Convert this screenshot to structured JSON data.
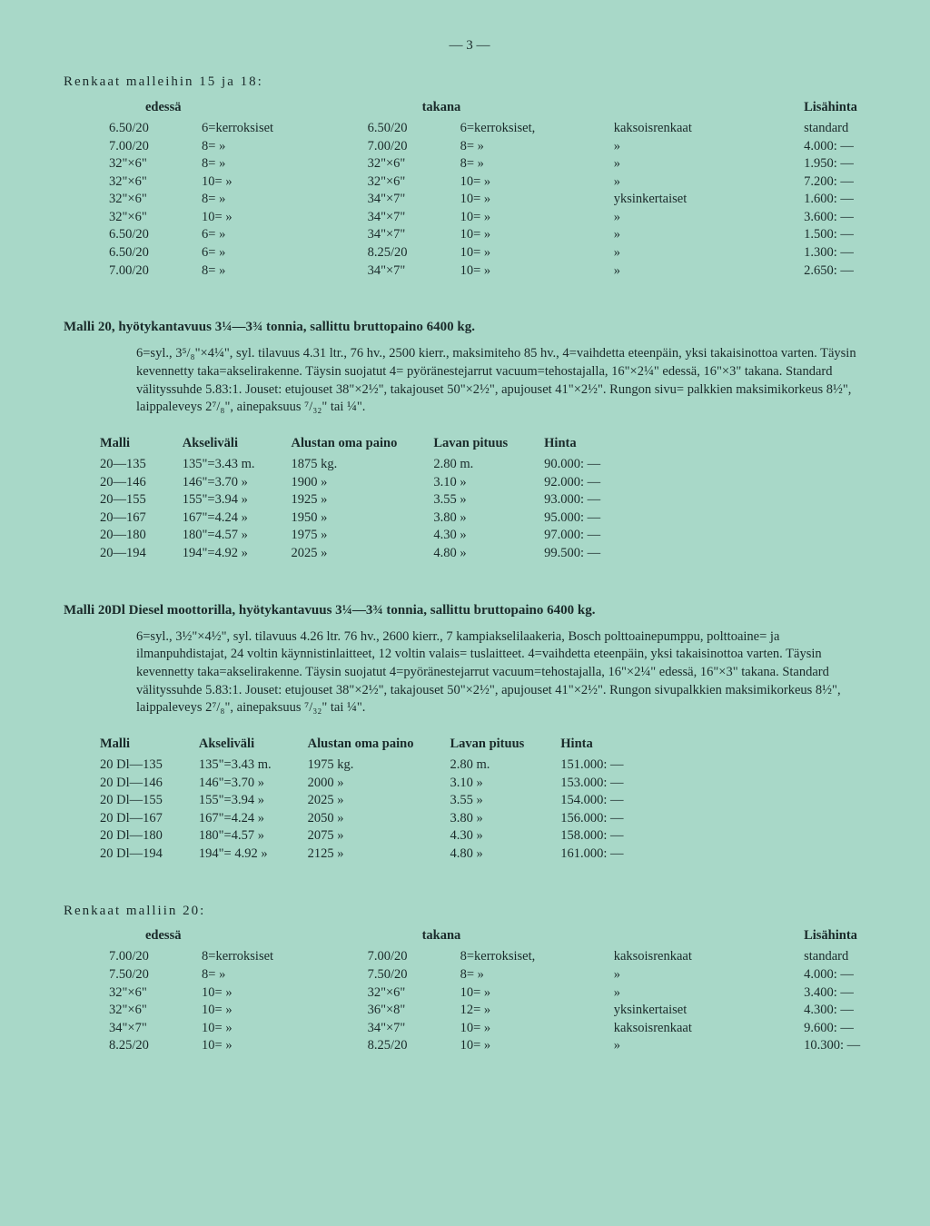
{
  "pageNumber": "— 3 —",
  "tireSection1": {
    "title": "Renkaat malleihin 15 ja 18:",
    "headers": {
      "front": "edessä",
      "rear": "takana",
      "extra": "Lisähinta"
    },
    "rows": [
      {
        "fSize": "6.50/20",
        "fPly": "6=kerroksiset",
        "rSize": "6.50/20",
        "rPly": "6=kerroksiset,",
        "rType": "kaksoisrenkaat",
        "price": "standard"
      },
      {
        "fSize": "7.00/20",
        "fPly": "8=      »",
        "rSize": "7.00/20",
        "rPly": "8=      »",
        "rType": "      »",
        "price": "4.000: —"
      },
      {
        "fSize": "32\"×6\"",
        "fPly": "8=      »",
        "rSize": "32\"×6\"",
        "rPly": "8=      »",
        "rType": "      »",
        "price": "1.950: —"
      },
      {
        "fSize": "32\"×6\"",
        "fPly": "10=     »",
        "rSize": "32\"×6\"",
        "rPly": "10=     »",
        "rType": "      »",
        "price": "7.200: —"
      },
      {
        "fSize": "32\"×6\"",
        "fPly": "8=      »",
        "rSize": "34\"×7\"",
        "rPly": "10=     »",
        "rType": "yksinkertaiset",
        "price": "1.600: —"
      },
      {
        "fSize": "32\"×6\"",
        "fPly": "10=     »",
        "rSize": "34\"×7\"",
        "rPly": "10=     »",
        "rType": "      »",
        "price": "3.600: —"
      },
      {
        "fSize": "6.50/20",
        "fPly": "6=      »",
        "rSize": "34\"×7\"",
        "rPly": "10=     »",
        "rType": "      »",
        "price": "1.500: —"
      },
      {
        "fSize": "6.50/20",
        "fPly": "6=      »",
        "rSize": "8.25/20",
        "rPly": "10=     »",
        "rType": "      »",
        "price": "1.300: —"
      },
      {
        "fSize": "7.00/20",
        "fPly": "8=      »",
        "rSize": "34\"×7\"",
        "rPly": "10=     »",
        "rType": "      »",
        "price": "2.650: —"
      }
    ]
  },
  "model20": {
    "heading": "Malli 20, hyötykantavuus 3¼—3¾ tonnia, sallittu bruttopaino 6400 kg.",
    "body": "6=syl., 3⁵/₈\"×4¼\", syl. tilavuus 4.31 ltr., 76 hv., 2500 kierr., maksimiteho 85 hv., 4=vaihdetta eteenpäin, yksi takaisinottoa varten.   Täysin kevennetty taka=akselirakenne.   Täysin suojatut 4= pyöränestejarrut vacuum=tehostajalla, 16\"×2¼\" edessä, 16\"×3\" takana.   Standard välityssuhde 5.83:1.  Jouset: etujouset 38\"×2½\", takajouset 50\"×2½\", apujouset 41\"×2½\". Rungon sivu= palkkien maksimikorkeus 8½\", laippaleveys 2⁷/₈\", ainepaksuus ⁷/₃₂\" tai ¼\".",
    "tableHeaders": {
      "model": "Malli",
      "wheelbase": "Akseliväli",
      "weight": "Alustan oma paino",
      "length": "Lavan pituus",
      "price": "Hinta"
    },
    "rows": [
      {
        "model": "20—135",
        "wb": "135\"=3.43 m.",
        "wt": "1875 kg.",
        "len": "2.80 m.",
        "price": "90.000: —"
      },
      {
        "model": "20—146",
        "wb": "146\"=3.70  »",
        "wt": "1900  »",
        "len": "3.10  »",
        "price": "92.000: —"
      },
      {
        "model": "20—155",
        "wb": "155\"=3.94  »",
        "wt": "1925  »",
        "len": "3.55  »",
        "price": "93.000: —"
      },
      {
        "model": "20—167",
        "wb": "167\"=4.24  »",
        "wt": "1950  »",
        "len": "3.80  »",
        "price": "95.000: —"
      },
      {
        "model": "20—180",
        "wb": "180\"=4.57  »",
        "wt": "1975  »",
        "len": "4.30  »",
        "price": "97.000: —"
      },
      {
        "model": "20—194",
        "wb": "194\"=4.92  »",
        "wt": "2025  »",
        "len": "4.80  »",
        "price": "99.500: —"
      }
    ]
  },
  "model20Dl": {
    "heading": "Malli 20Dl Diesel moottorilla, hyötykantavuus 3¼—3¾ tonnia, sallittu bruttopaino 6400 kg.",
    "body": "6=syl., 3½\"×4½\", syl. tilavuus 4.26 ltr. 76 hv., 2600 kierr., 7 kampiakselilaakeria, Bosch polttoainepumppu, polttoaine= ja ilmanpuhdistajat, 24 voltin käynnistinlaitteet, 12 voltin valais= tuslaitteet. 4=vaihdetta eteenpäin, yksi takaisinottoa varten. Täysin kevennetty taka=akselirakenne. Täysin suojatut 4=pyöränestejarrut vacuum=tehostajalla, 16\"×2¼\" edessä, 16\"×3\" takana. Standard välityssuhde 5.83:1.  Jouset: etujouset 38\"×2½\", takajouset 50\"×2½\", apujouset 41\"×2½\". Rungon sivupalkkien maksimikorkeus 8½\", laippaleveys 2⁷/₈\", ainepaksuus ⁷/₃₂\" tai ¼\".",
    "tableHeaders": {
      "model": "Malli",
      "wheelbase": "Akseliväli",
      "weight": "Alustan oma paino",
      "length": "Lavan pituus",
      "price": "Hinta"
    },
    "rows": [
      {
        "model": "20 Dl—135",
        "wb": "135\"=3.43 m.",
        "wt": "1975 kg.",
        "len": "2.80 m.",
        "price": "151.000: —"
      },
      {
        "model": "20 Dl—146",
        "wb": "146\"=3.70  »",
        "wt": "2000  »",
        "len": "3.10  »",
        "price": "153.000: —"
      },
      {
        "model": "20 Dl—155",
        "wb": "155\"=3.94  »",
        "wt": "2025  »",
        "len": "3.55  »",
        "price": "154.000: —"
      },
      {
        "model": "20 Dl—167",
        "wb": "167\"=4.24  »",
        "wt": "2050  »",
        "len": "3.80  »",
        "price": "156.000: —"
      },
      {
        "model": "20 Dl—180",
        "wb": "180\"=4.57  »",
        "wt": "2075  »",
        "len": "4.30  »",
        "price": "158.000: —"
      },
      {
        "model": "20 Dl—194",
        "wb": "194\"= 4.92  »",
        "wt": "2125  »",
        "len": "4.80  »",
        "price": "161.000: —"
      }
    ]
  },
  "tireSection2": {
    "title": "Renkaat malliin 20:",
    "headers": {
      "front": "edessä",
      "rear": "takana",
      "extra": "Lisähinta"
    },
    "rows": [
      {
        "fSize": "7.00/20",
        "fPly": "8=kerroksiset",
        "rSize": "7.00/20",
        "rPly": "8=kerroksiset,",
        "rType": "kaksoisrenkaat",
        "price": "standard"
      },
      {
        "fSize": "7.50/20",
        "fPly": "8=      »",
        "rSize": "7.50/20",
        "rPly": "8=      »",
        "rType": "      »",
        "price": "4.000: —"
      },
      {
        "fSize": "32\"×6\"",
        "fPly": "10=     »",
        "rSize": "32\"×6\"",
        "rPly": "10=     »",
        "rType": "      »",
        "price": "3.400: —"
      },
      {
        "fSize": "32\"×6\"",
        "fPly": "10=     »",
        "rSize": "36\"×8\"",
        "rPly": "12=     »",
        "rType": "yksinkertaiset",
        "price": "4.300: —"
      },
      {
        "fSize": "34\"×7\"",
        "fPly": "10=     »",
        "rSize": "34\"×7\"",
        "rPly": "10=     »",
        "rType": "kaksoisrenkaat",
        "price": "9.600: —"
      },
      {
        "fSize": "8.25/20",
        "fPly": "10=     »",
        "rSize": "8.25/20",
        "rPly": "10=     »",
        "rType": "      »",
        "price": "10.300: —"
      }
    ]
  }
}
